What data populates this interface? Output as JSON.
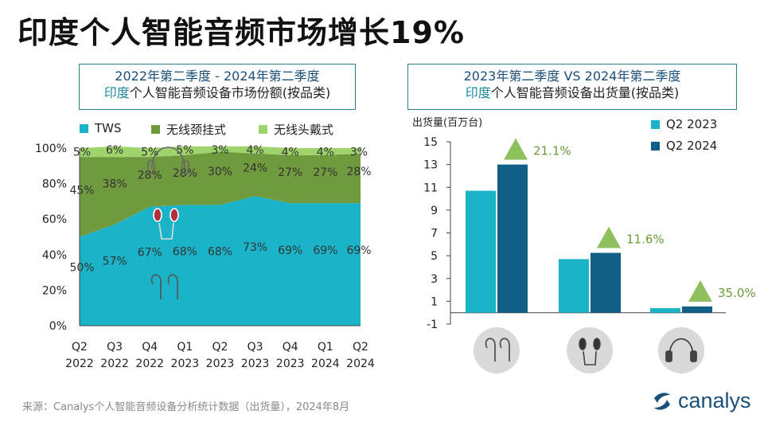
{
  "title": "印度个人智能音频市场增长19%",
  "left_panel": {
    "title_line1_a": "2022年第二季度 - 2024年第二季度",
    "title_line2_a": "印度",
    "title_line2_b": "个人智能音频设备市场份额(按品类)"
  },
  "right_panel": {
    "title_line1_a": "2023年第二季度",
    "title_line1_b": " VS ",
    "title_line1_c": "2024年第二季度",
    "title_line2_a": "印度",
    "title_line2_b": "个人智能音频设备出货量(按品类)"
  },
  "colors": {
    "tws": "#1bb3c8",
    "neckband": "#6f9a3e",
    "headphone": "#9fd36c",
    "q2_2023": "#1bb3c8",
    "q2_2024": "#0f5f86",
    "arrow": "#8fc060",
    "growth_text": "#6a9a3a"
  },
  "chart_data": [
    {
      "type": "area",
      "stacked": true,
      "x_line1": [
        "Q2",
        "Q3",
        "Q4",
        "Q1",
        "Q2",
        "Q3",
        "Q4",
        "Q1",
        "Q2"
      ],
      "x_line2": [
        "2022",
        "2022",
        "2022",
        "2023",
        "2023",
        "2023",
        "2023",
        "2024",
        "2024"
      ],
      "ylim": [
        0,
        100
      ],
      "y_ticks": [
        "0%",
        "20%",
        "40%",
        "60%",
        "80%",
        "100%"
      ],
      "series": [
        {
          "name": "TWS",
          "values": [
            50,
            57,
            67,
            68,
            68,
            73,
            69,
            69,
            69
          ],
          "labels": [
            "50%",
            "57%",
            "67%",
            "68%",
            "68%",
            "73%",
            "69%",
            "69%",
            "69%"
          ]
        },
        {
          "name": "无线颈挂式",
          "values": [
            45,
            38,
            28,
            28,
            30,
            24,
            27,
            27,
            28
          ],
          "labels": [
            "45%",
            "38%",
            "28%",
            "28%",
            "30%",
            "24%",
            "27%",
            "27%",
            "28%"
          ]
        },
        {
          "name": "无线头戴式",
          "values": [
            5,
            6,
            5,
            5,
            3,
            4,
            4,
            4,
            3
          ],
          "labels": [
            "5%",
            "6%",
            "5%",
            "5%",
            "3%",
            "4%",
            "4%",
            "4%",
            "3%"
          ]
        }
      ]
    },
    {
      "type": "bar",
      "ylabel": "出货量(百万台)",
      "ylim": [
        -1,
        15
      ],
      "y_ticks": [
        "-1",
        "1",
        "3",
        "5",
        "7",
        "9",
        "11",
        "13",
        "15"
      ],
      "categories": [
        "TWS",
        "无线颈挂式",
        "无线头戴式"
      ],
      "series": [
        {
          "name": "Q2 2023",
          "values": [
            10.7,
            4.7,
            0.4
          ]
        },
        {
          "name": "Q2 2024",
          "values": [
            13.0,
            5.25,
            0.55
          ]
        }
      ],
      "growth": [
        "21.1%",
        "11.6%",
        "35.0%"
      ]
    }
  ],
  "source": "来源：Canalys个人智能音频设备分析统计数据（出货量），2024年8月",
  "logo": "canalys"
}
